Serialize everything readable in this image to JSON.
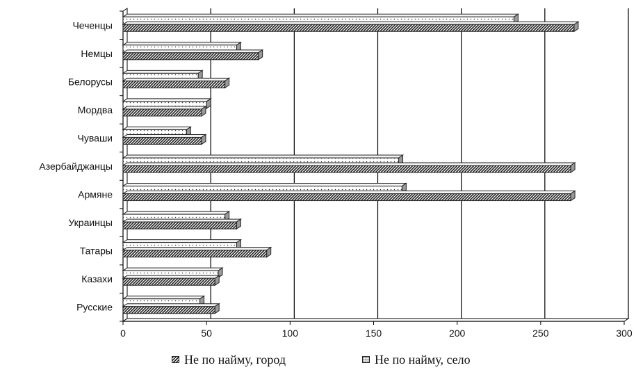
{
  "chart_data": {
    "type": "bar",
    "orientation": "horizontal",
    "categories": [
      "Чеченцы",
      "Немцы",
      "Белорусы",
      "Мордва",
      "Чуваши",
      "Азербайджанцы",
      "Армяне",
      "Украинцы",
      "Татары",
      "Казахи",
      "Русские"
    ],
    "series": [
      {
        "name": "Не по найму, город",
        "pattern": "diagonal-hatch",
        "values": [
          270,
          81,
          61,
          47,
          47,
          268,
          268,
          68,
          86,
          55,
          55
        ]
      },
      {
        "name": "Не по найму, село",
        "pattern": "dotted",
        "values": [
          234,
          68,
          45,
          50,
          38,
          165,
          167,
          61,
          68,
          57,
          46
        ]
      }
    ],
    "xlim": [
      0,
      300
    ],
    "xticks": [
      "0",
      "50",
      "100",
      "150",
      "200",
      "250",
      "300"
    ],
    "grid": true,
    "legend_position": "bottom",
    "style": "3d",
    "colors": {
      "bar_fill": "#ffffff",
      "bar_stroke": "#222222",
      "bar_side": "#9a9a9a",
      "grid": "#000000"
    }
  }
}
